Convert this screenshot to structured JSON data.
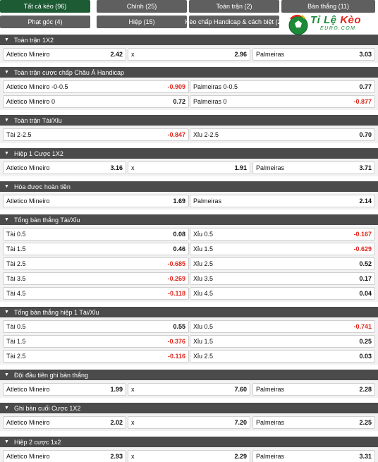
{
  "tabs": [
    {
      "label": "Tất cả kèo (96)",
      "active": true
    },
    {
      "label": "Chính (25)",
      "active": false
    },
    {
      "label": "Toàn trận (2)",
      "active": false
    },
    {
      "label": "Bàn thắng (11)",
      "active": false
    },
    {
      "label": "Phạt góc (4)",
      "active": false
    },
    {
      "label": "Hiệp (15)",
      "active": false
    },
    {
      "label": "Kèo chấp Handicap & cách biệt (2)",
      "active": false
    }
  ],
  "logo": {
    "text_a": "Tỉ Lệ",
    "text_b": "Kèo",
    "sub": "EURO.COM",
    "colors": {
      "green": "#1d8a3a",
      "red": "#e0261b"
    }
  },
  "colors": {
    "header": "#4b4b4b",
    "active_tab": "#1d5b34",
    "tab": "#5f5f5f",
    "negative": "#e0261b"
  },
  "sections": [
    {
      "title": "Toàn trận 1X2",
      "type": "three",
      "rows": [
        [
          [
            "Atletico Mineiro",
            "2.42"
          ],
          [
            "x",
            "2.96"
          ],
          [
            "Palmeiras",
            "3.03"
          ]
        ]
      ]
    },
    {
      "title": "Toàn trận cược chấp Châu Á Handicap",
      "type": "two",
      "rows": [
        [
          [
            "Atletico Mineiro -0-0.5",
            "-0.909"
          ],
          [
            "Palmeiras 0-0.5",
            "0.77"
          ]
        ],
        [
          [
            "Atletico Mineiro 0",
            "0.72"
          ],
          [
            "Palmeiras 0",
            "-0.877"
          ]
        ]
      ]
    },
    {
      "title": "Toàn trận Tài/Xỉu",
      "type": "two",
      "rows": [
        [
          [
            "Tài 2-2.5",
            "-0.847"
          ],
          [
            "Xỉu 2-2.5",
            "0.70"
          ]
        ]
      ]
    },
    {
      "title": "Hiệp 1 Cược 1X2",
      "type": "three",
      "rows": [
        [
          [
            "Atletico Mineiro",
            "3.16"
          ],
          [
            "x",
            "1.91"
          ],
          [
            "Palmeiras",
            "3.71"
          ]
        ]
      ]
    },
    {
      "title": "Hòa được hoàn tiền",
      "type": "two",
      "rows": [
        [
          [
            "Atletico Mineiro",
            "1.69"
          ],
          [
            "Palmeiras",
            "2.14"
          ]
        ]
      ]
    },
    {
      "title": "Tổng bàn thắng Tài/Xỉu",
      "type": "two",
      "rows": [
        [
          [
            "Tài 0.5",
            "0.08"
          ],
          [
            "Xỉu 0.5",
            "-0.167"
          ]
        ],
        [
          [
            "Tài 1.5",
            "0.46"
          ],
          [
            "Xỉu 1.5",
            "-0.629"
          ]
        ],
        [
          [
            "Tài 2.5",
            "-0.685"
          ],
          [
            "Xỉu 2.5",
            "0.52"
          ]
        ],
        [
          [
            "Tài 3.5",
            "-0.269"
          ],
          [
            "Xỉu 3.5",
            "0.17"
          ]
        ],
        [
          [
            "Tài 4.5",
            "-0.118"
          ],
          [
            "Xỉu 4.5",
            "0.04"
          ]
        ]
      ]
    },
    {
      "title": "Tổng bàn thắng hiệp 1 Tài/Xỉu",
      "type": "two",
      "rows": [
        [
          [
            "Tài 0.5",
            "0.55"
          ],
          [
            "Xỉu 0.5",
            "-0.741"
          ]
        ],
        [
          [
            "Tài 1.5",
            "-0.376"
          ],
          [
            "Xỉu 1.5",
            "0.25"
          ]
        ],
        [
          [
            "Tài 2.5",
            "-0.116"
          ],
          [
            "Xỉu 2.5",
            "0.03"
          ]
        ]
      ]
    },
    {
      "title": "Đội đầu tiên ghi bàn thắng",
      "type": "three",
      "rows": [
        [
          [
            "Atletico Mineiro",
            "1.99"
          ],
          [
            "x",
            "7.60"
          ],
          [
            "Palmeiras",
            "2.28"
          ]
        ]
      ]
    },
    {
      "title": "Ghi bàn cuối Cược 1X2",
      "type": "three",
      "rows": [
        [
          [
            "Atletico Mineiro",
            "2.02"
          ],
          [
            "x",
            "7.20"
          ],
          [
            "Palmeiras",
            "2.25"
          ]
        ]
      ]
    },
    {
      "title": "Hiệp 2 cược 1x2",
      "type": "three",
      "rows": [
        [
          [
            "Atletico Mineiro",
            "2.93"
          ],
          [
            "x",
            "2.29"
          ],
          [
            "Palmeiras",
            "3.31"
          ]
        ]
      ]
    }
  ]
}
